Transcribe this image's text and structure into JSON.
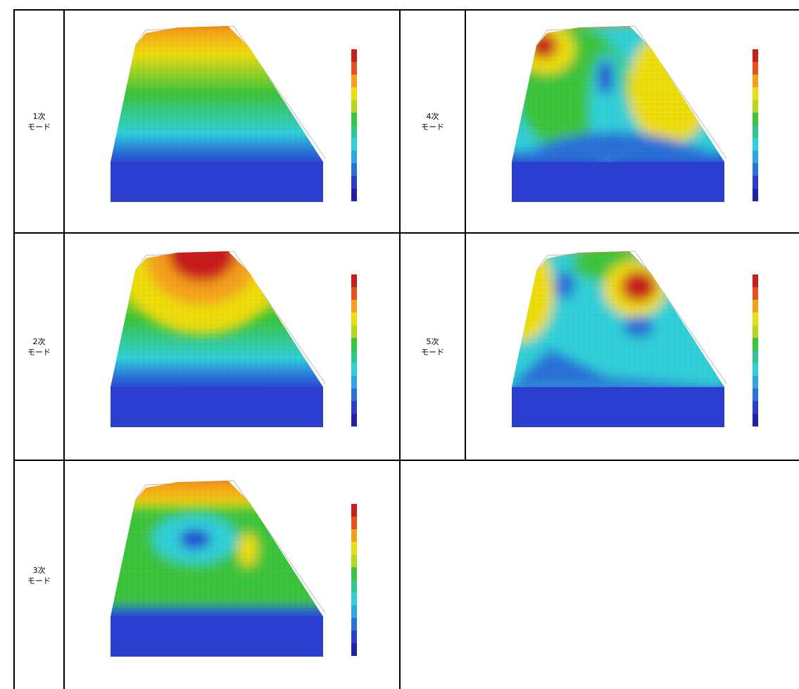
{
  "table": {
    "rows": [
      [
        {
          "label": [
            "1次",
            "モード"
          ]
        },
        {
          "label": [
            "4次",
            "モード"
          ]
        }
      ],
      [
        {
          "label": [
            "2次",
            "モード"
          ]
        },
        {
          "label": [
            "5次",
            "モード"
          ]
        }
      ],
      [
        {
          "label": [
            "3次",
            "モード"
          ]
        }
      ]
    ]
  }
}
